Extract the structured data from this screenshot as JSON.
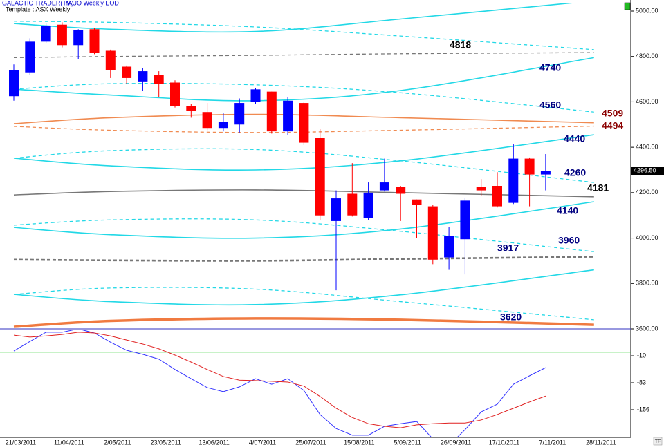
{
  "chart_data": [
    {
      "type": "candlestick",
      "title": "GALACTIC TRADER(TM)",
      "subtitle": "*AUO Weekly EOD",
      "template": "Template : ASX Weekly",
      "categories": [
        "21/03/2011",
        null,
        null,
        "11/04/2011",
        null,
        null,
        "2/05/2011",
        null,
        null,
        "23/05/2011",
        null,
        null,
        "13/06/2011",
        null,
        null,
        "4/07/2011",
        null,
        null,
        "25/07/2011",
        null,
        null,
        "15/08/2011",
        null,
        null,
        "5/09/2011",
        null,
        null,
        "26/09/2011",
        null,
        null,
        "17/10/2011",
        null,
        null,
        "7/11/2011",
        null,
        null,
        "28/11/2011"
      ],
      "open": [
        4625,
        4730,
        4865,
        4940,
        4850,
        4920,
        4825,
        4755,
        4690,
        4720,
        4685,
        4580,
        4555,
        4485,
        4500,
        4600,
        4645,
        4470,
        4595,
        4440,
        4075,
        4195,
        4090,
        4210,
        4225,
        4170,
        4140,
        3915,
        3995,
        4225,
        4230,
        4155,
        4350,
        4280,
        null,
        null,
        null
      ],
      "high": [
        4765,
        4880,
        4945,
        4950,
        4920,
        4925,
        4830,
        4760,
        4750,
        4735,
        4695,
        4590,
        4595,
        4550,
        4615,
        4660,
        4645,
        4620,
        4600,
        4480,
        4210,
        4330,
        4245,
        4350,
        4230,
        4170,
        4145,
        4050,
        4175,
        4260,
        4290,
        4415,
        4355,
        4370,
        null,
        null,
        null
      ],
      "low": [
        4605,
        4720,
        4860,
        4840,
        4790,
        4810,
        4705,
        4680,
        4650,
        4620,
        4575,
        4530,
        4475,
        4470,
        4465,
        4590,
        4460,
        4455,
        4410,
        4080,
        3770,
        4095,
        4080,
        4205,
        4075,
        4000,
        3885,
        3860,
        3840,
        4185,
        4135,
        4150,
        4140,
        4210,
        null,
        null,
        null
      ],
      "close": [
        4740,
        4865,
        4935,
        4850,
        4915,
        4815,
        4740,
        4705,
        4735,
        4680,
        4580,
        4560,
        4485,
        4510,
        4595,
        4655,
        4470,
        4605,
        4420,
        4100,
        4175,
        4100,
        4200,
        4245,
        4195,
        4145,
        3905,
        4010,
        4165,
        4210,
        4140,
        4350,
        4280,
        4296.5,
        null,
        null,
        null
      ],
      "up_color": "#0000ff",
      "down_color": "#ff0000",
      "ylim": [
        3600,
        5035
      ],
      "yticks": [
        {
          "value": 5000,
          "label": "5000.00"
        },
        {
          "value": 4800,
          "label": "4800.00"
        },
        {
          "value": 4600,
          "label": "4600.00"
        },
        {
          "value": 4400,
          "label": "4400.00"
        },
        {
          "value": 4200,
          "label": "4200.00"
        },
        {
          "value": 4000,
          "label": "4000.00"
        },
        {
          "value": 3800,
          "label": "3800.00"
        },
        {
          "value": 3600,
          "label": "3600.00"
        }
      ],
      "last_price": {
        "value": 4296.5,
        "label": "4296.50"
      },
      "overlays": [
        {
          "color": "#22d8e6",
          "style": "solid",
          "x": [
            "21/03/2011",
            "2/05/2011",
            "4/07/2011",
            "5/09/2011",
            "28/11/2011"
          ],
          "values": [
            4945,
            4920,
            4910,
            4965,
            5045
          ]
        },
        {
          "color": "#22d8e6",
          "style": "dashed",
          "x": [
            "21/03/2011",
            "2/05/2011",
            "4/07/2011",
            "5/09/2011",
            "28/11/2011"
          ],
          "values": [
            4955,
            4950,
            4930,
            4890,
            4830
          ]
        },
        {
          "color": "#777777",
          "style": "dashed",
          "x": [
            "21/03/2011",
            "2/05/2011",
            "4/07/2011",
            "5/09/2011",
            "28/11/2011"
          ],
          "values": [
            4795,
            4800,
            4805,
            4812,
            4817
          ]
        },
        {
          "color": "#22d8e6",
          "style": "solid",
          "x": [
            "21/03/2011",
            "2/05/2011",
            "4/07/2011",
            "5/09/2011",
            "28/11/2011"
          ],
          "values": [
            4656,
            4630,
            4605,
            4650,
            4795
          ]
        },
        {
          "color": "#22d8e6",
          "style": "dashed",
          "x": [
            "21/03/2011",
            "2/05/2011",
            "4/07/2011",
            "5/09/2011",
            "28/11/2011"
          ],
          "values": [
            4656,
            4680,
            4675,
            4640,
            4555
          ]
        },
        {
          "color": "#f08a50",
          "style": "solid",
          "x": [
            "21/03/2011",
            "2/05/2011",
            "4/07/2011",
            "5/09/2011",
            "28/11/2011"
          ],
          "values": [
            4504,
            4530,
            4545,
            4530,
            4508
          ]
        },
        {
          "color": "#f08a50",
          "style": "dashed",
          "x": [
            "21/03/2011",
            "2/05/2011",
            "4/07/2011",
            "5/09/2011",
            "28/11/2011"
          ],
          "values": [
            4492,
            4475,
            4465,
            4475,
            4493
          ]
        },
        {
          "color": "#22d8e6",
          "style": "solid",
          "x": [
            "21/03/2011",
            "2/05/2011",
            "4/07/2011",
            "5/09/2011",
            "28/11/2011"
          ],
          "values": [
            4352,
            4318,
            4300,
            4340,
            4455
          ]
        },
        {
          "color": "#22d8e6",
          "style": "dashed",
          "x": [
            "21/03/2011",
            "2/05/2011",
            "4/07/2011",
            "5/09/2011",
            "28/11/2011"
          ],
          "values": [
            4352,
            4385,
            4390,
            4340,
            4245
          ]
        },
        {
          "color": "#777777",
          "style": "solid",
          "x": [
            "21/03/2011",
            "2/05/2011",
            "4/07/2011",
            "5/09/2011",
            "28/11/2011"
          ],
          "values": [
            4190,
            4205,
            4212,
            4200,
            4182
          ]
        },
        {
          "color": "#22d8e6",
          "style": "solid",
          "x": [
            "21/03/2011",
            "2/05/2011",
            "4/07/2011",
            "5/09/2011",
            "28/11/2011"
          ],
          "values": [
            4047,
            4015,
            4000,
            4040,
            4160
          ]
        },
        {
          "color": "#22d8e6",
          "style": "dashed",
          "x": [
            "21/03/2011",
            "2/05/2011",
            "4/07/2011",
            "5/09/2011",
            "28/11/2011"
          ],
          "values": [
            4057,
            4080,
            4080,
            4030,
            3940
          ]
        },
        {
          "color": "#777777",
          "style": "thick-dashed",
          "x": [
            "21/03/2011",
            "2/05/2011",
            "4/07/2011",
            "5/09/2011",
            "28/11/2011"
          ],
          "values": [
            3905,
            3902,
            3900,
            3908,
            3918
          ]
        },
        {
          "color": "#22d8e6",
          "style": "solid",
          "x": [
            "21/03/2011",
            "2/05/2011",
            "4/07/2011",
            "5/09/2011",
            "28/11/2011"
          ],
          "values": [
            3752,
            3720,
            3707,
            3750,
            3860
          ]
        },
        {
          "color": "#22d8e6",
          "style": "dashed",
          "x": [
            "21/03/2011",
            "2/05/2011",
            "4/07/2011",
            "5/09/2011",
            "28/11/2011"
          ],
          "values": [
            3752,
            3780,
            3775,
            3720,
            3640
          ]
        },
        {
          "color": "#f07a40",
          "style": "thick",
          "x": [
            "21/03/2011",
            "2/05/2011",
            "4/07/2011",
            "5/09/2011",
            "28/11/2011"
          ],
          "values": [
            3609,
            3635,
            3646,
            3640,
            3618
          ]
        }
      ],
      "levels": [
        {
          "value": 4818,
          "color": "#000000"
        },
        {
          "value": 4740,
          "color": "#000080"
        },
        {
          "value": 4560,
          "color": "#000080"
        },
        {
          "value": 4509,
          "color": "#8b0000"
        },
        {
          "value": 4494,
          "color": "#8b0000"
        },
        {
          "value": 4440,
          "color": "#000080"
        },
        {
          "value": 4260,
          "color": "#000080"
        },
        {
          "value": 4181,
          "color": "#000000"
        },
        {
          "value": 4140,
          "color": "#000080"
        },
        {
          "value": 3960,
          "color": "#000080"
        },
        {
          "value": 3917,
          "color": "#000080"
        },
        {
          "value": 3620,
          "color": "#000080"
        }
      ]
    },
    {
      "type": "line",
      "ylim": [
        -230,
        65
      ],
      "yticks": [
        -10,
        -83,
        -156
      ],
      "hlines": [
        {
          "value": 0,
          "color": "#22cc22"
        }
      ],
      "series": [
        {
          "color": "#3333ff",
          "values": [
            3,
            29,
            54,
            54,
            63,
            52,
            27,
            5,
            -6,
            -19,
            -47,
            -72,
            -96,
            -107,
            -94,
            -72,
            -87,
            -72,
            -104,
            -169,
            -207,
            -225,
            -225,
            -201,
            -194,
            -188,
            -235,
            -253,
            -210,
            -162,
            -141,
            -87,
            -64,
            -42,
            null,
            null,
            null
          ]
        },
        {
          "color": "#e02020",
          "values": [
            46,
            41,
            44,
            48,
            54,
            52,
            44,
            33,
            22,
            9,
            -8,
            -27,
            -47,
            -66,
            -76,
            -77,
            -79,
            -81,
            -92,
            -120,
            -152,
            -177,
            -194,
            -201,
            -205,
            -197,
            -194,
            -192,
            -192,
            -184,
            -169,
            -152,
            -135,
            -119,
            null,
            null,
            null
          ]
        }
      ]
    }
  ]
}
